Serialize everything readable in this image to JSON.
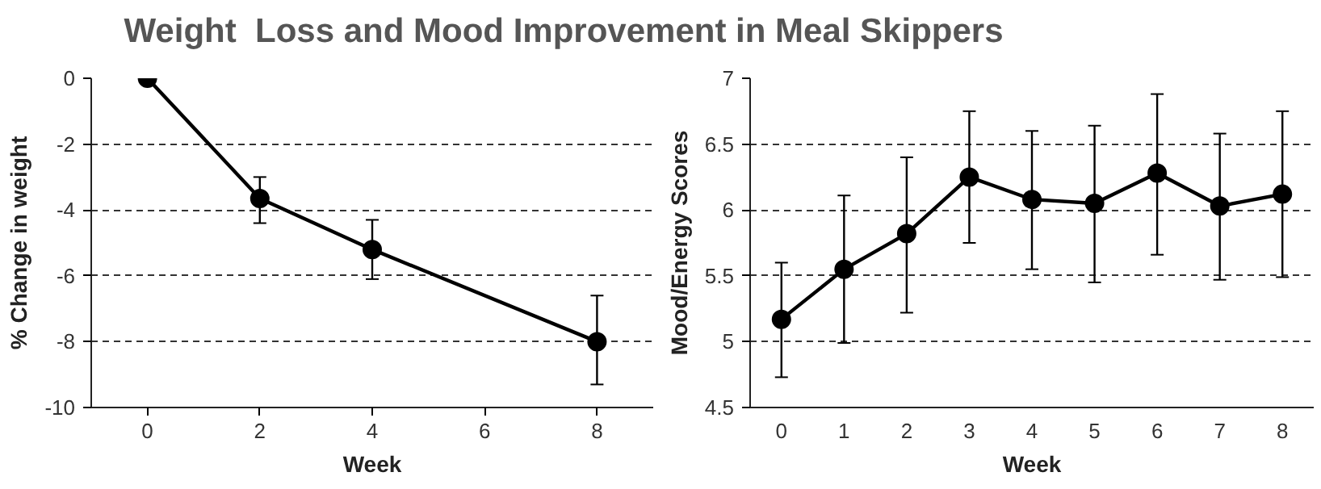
{
  "chart_data": [
    {
      "type": "line",
      "title": "Weight  Loss and Mood Improvement in Meal Skippers",
      "xlabel": "Week",
      "ylabel": "% Change in weight",
      "x": [
        0,
        2,
        4,
        8
      ],
      "series": [
        {
          "color": "#000000",
          "values": [
            0,
            -3.65,
            -5.2,
            -8.0
          ],
          "errors": [
            null,
            [
              -4.4,
              -3.0
            ],
            [
              -6.1,
              -4.3
            ],
            [
              -9.3,
              -6.6
            ]
          ]
        }
      ],
      "xlim": [
        -1,
        9
      ],
      "xticks": [
        0,
        2,
        4,
        6,
        8
      ],
      "ylim": [
        -10,
        0
      ],
      "yticks": [
        -10,
        -8,
        -6,
        -4,
        -2,
        0
      ],
      "grid": "y",
      "marker": "circle",
      "line_style": "solid"
    },
    {
      "type": "line",
      "xlabel": "Week",
      "ylabel": "Mood/Energy Scores",
      "categories": [
        "0",
        "1",
        "2",
        "3",
        "4",
        "5",
        "6",
        "7",
        "8"
      ],
      "series": [
        {
          "color": "#000000",
          "values": [
            5.17,
            5.55,
            5.82,
            6.25,
            6.08,
            6.05,
            6.28,
            6.03,
            6.12
          ],
          "errors": [
            [
              4.73,
              5.6
            ],
            [
              4.99,
              6.11
            ],
            [
              5.22,
              6.4
            ],
            [
              5.75,
              6.75
            ],
            [
              5.55,
              6.6
            ],
            [
              5.45,
              6.64
            ],
            [
              5.66,
              6.88
            ],
            [
              5.47,
              6.58
            ],
            [
              5.49,
              6.75
            ]
          ]
        }
      ],
      "ylim": [
        4.5,
        7
      ],
      "yticks": [
        4.5,
        5,
        5.5,
        6,
        6.5,
        7
      ],
      "grid": "y",
      "marker": "circle",
      "line_style": "solid"
    }
  ]
}
